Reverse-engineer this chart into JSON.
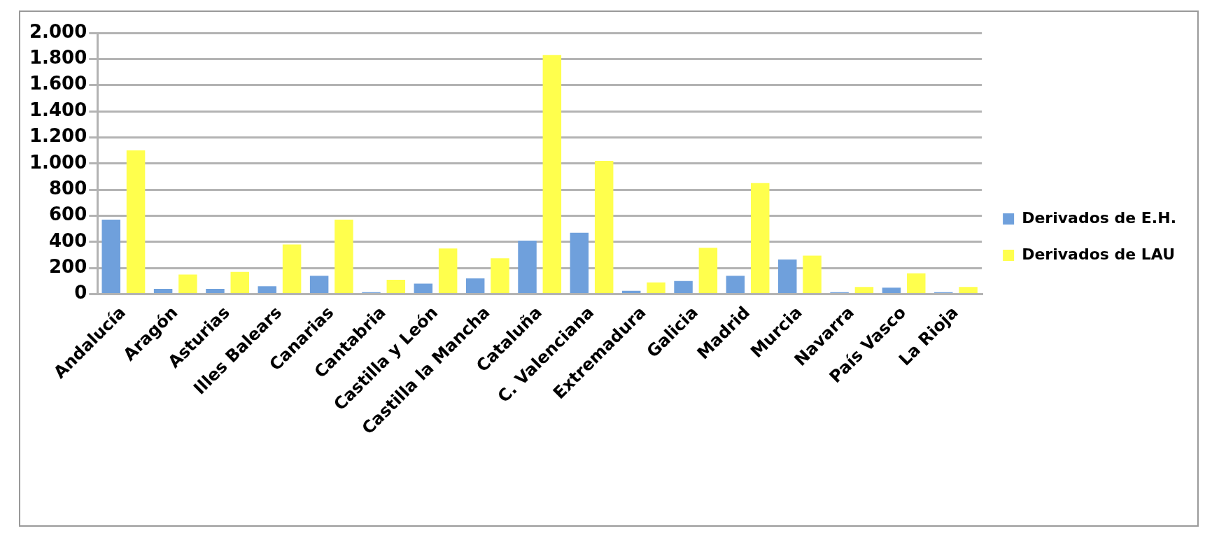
{
  "chart_data": {
    "type": "bar",
    "categories": [
      "Andalucía",
      "Aragón",
      "Asturias",
      "Illes Balears",
      "Canarias",
      "Cantabria",
      "Castilla y León",
      "Castilla la Mancha",
      "Cataluña",
      "C. Valenciana",
      "Extremadura",
      "Galicia",
      "Madrid",
      "Murcia",
      "Navarra",
      "País Vasco",
      "La Rioja"
    ],
    "series": [
      {
        "name": "Derivados de E.H.",
        "color": "#6fa0dc",
        "values": [
          570,
          40,
          40,
          60,
          140,
          15,
          80,
          120,
          410,
          470,
          25,
          100,
          140,
          265,
          15,
          50,
          15
        ]
      },
      {
        "name": "Derivados de LAU",
        "color": "#ffff4d",
        "values": [
          1100,
          150,
          170,
          380,
          570,
          110,
          350,
          275,
          1830,
          1020,
          90,
          355,
          850,
          295,
          55,
          160,
          55
        ]
      }
    ],
    "ylim": [
      0,
      2000
    ],
    "yticks": [
      {
        "value": 0,
        "label": "0"
      },
      {
        "value": 200,
        "label": "200"
      },
      {
        "value": 400,
        "label": "400"
      },
      {
        "value": 600,
        "label": "600"
      },
      {
        "value": 800,
        "label": "800"
      },
      {
        "value": 1000,
        "label": "1.000"
      },
      {
        "value": 1200,
        "label": "1.200"
      },
      {
        "value": 1400,
        "label": "1.400"
      },
      {
        "value": 1600,
        "label": "1.600"
      },
      {
        "value": 1800,
        "label": "1.800"
      },
      {
        "value": 2000,
        "label": "2.000"
      }
    ],
    "grid": "y",
    "legend": "right"
  }
}
